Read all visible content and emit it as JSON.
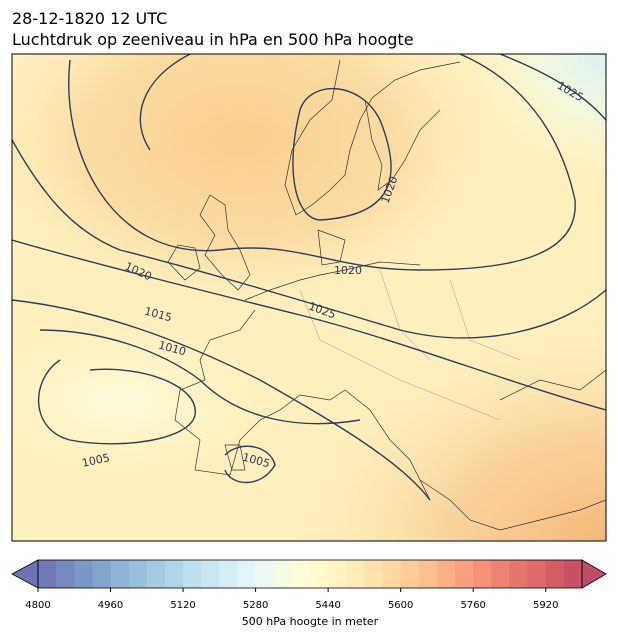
{
  "header": {
    "lines": [
      "28-12-1820 12 UTC",
      "Luchtdruk op zeeniveau in hPa en 500 hPa hoogte"
    ]
  },
  "map": {
    "contour_labels": [
      "1025",
      "1020",
      "1020",
      "1020",
      "1025",
      "1015",
      "1010",
      "1005",
      "1005"
    ]
  },
  "colorbar": {
    "min": 4800,
    "max": 6000,
    "step": 40,
    "ticks": [
      4800,
      4960,
      5120,
      5280,
      5440,
      5600,
      5760,
      5920
    ],
    "label": "500 hPa hoogte in meter"
  }
}
